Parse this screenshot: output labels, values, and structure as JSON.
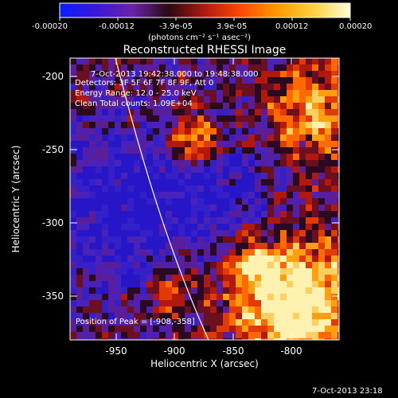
{
  "colorbar": {
    "ticks": [
      "-0.00020",
      "-0.00012",
      "-3.9e-05",
      "3.9e-05",
      "0.00012",
      "0.00020"
    ],
    "units": "(photons cm⁻² s⁻¹ asec⁻²)",
    "colors": [
      "#0a1cff",
      "#3a18d8",
      "#6a22a8",
      "#2a0a10",
      "#b01a10",
      "#ff4a00",
      "#ff9a00",
      "#ffd040",
      "#ffffd8"
    ]
  },
  "plot": {
    "title": "Reconstructed RHESSI Image",
    "time_range": "7-Oct-2013 19:42:38.000 to 19:48:38.000",
    "detectors": "Detectors: 3F 5F 6F 7F 8F 9F, Att 0",
    "energy": "Energy Range: 12.0 - 25.0 keV",
    "clean": "Clean    Total counts: 1.09E+04",
    "peak": "Position of Peak = [-908,-358]",
    "xlabel": "Heliocentric X (arcsec)",
    "ylabel": "Heliocentric Y (arcsec)",
    "x_ticks": [
      "-950",
      "-900",
      "-850",
      "-800"
    ],
    "y_ticks": [
      "-200",
      "-250",
      "-300",
      "-350"
    ],
    "x_range": [
      -975,
      -790
    ],
    "y_range": [
      -380,
      -190
    ]
  },
  "footer": {
    "timestamp": "7-Oct-2013 23:18"
  }
}
